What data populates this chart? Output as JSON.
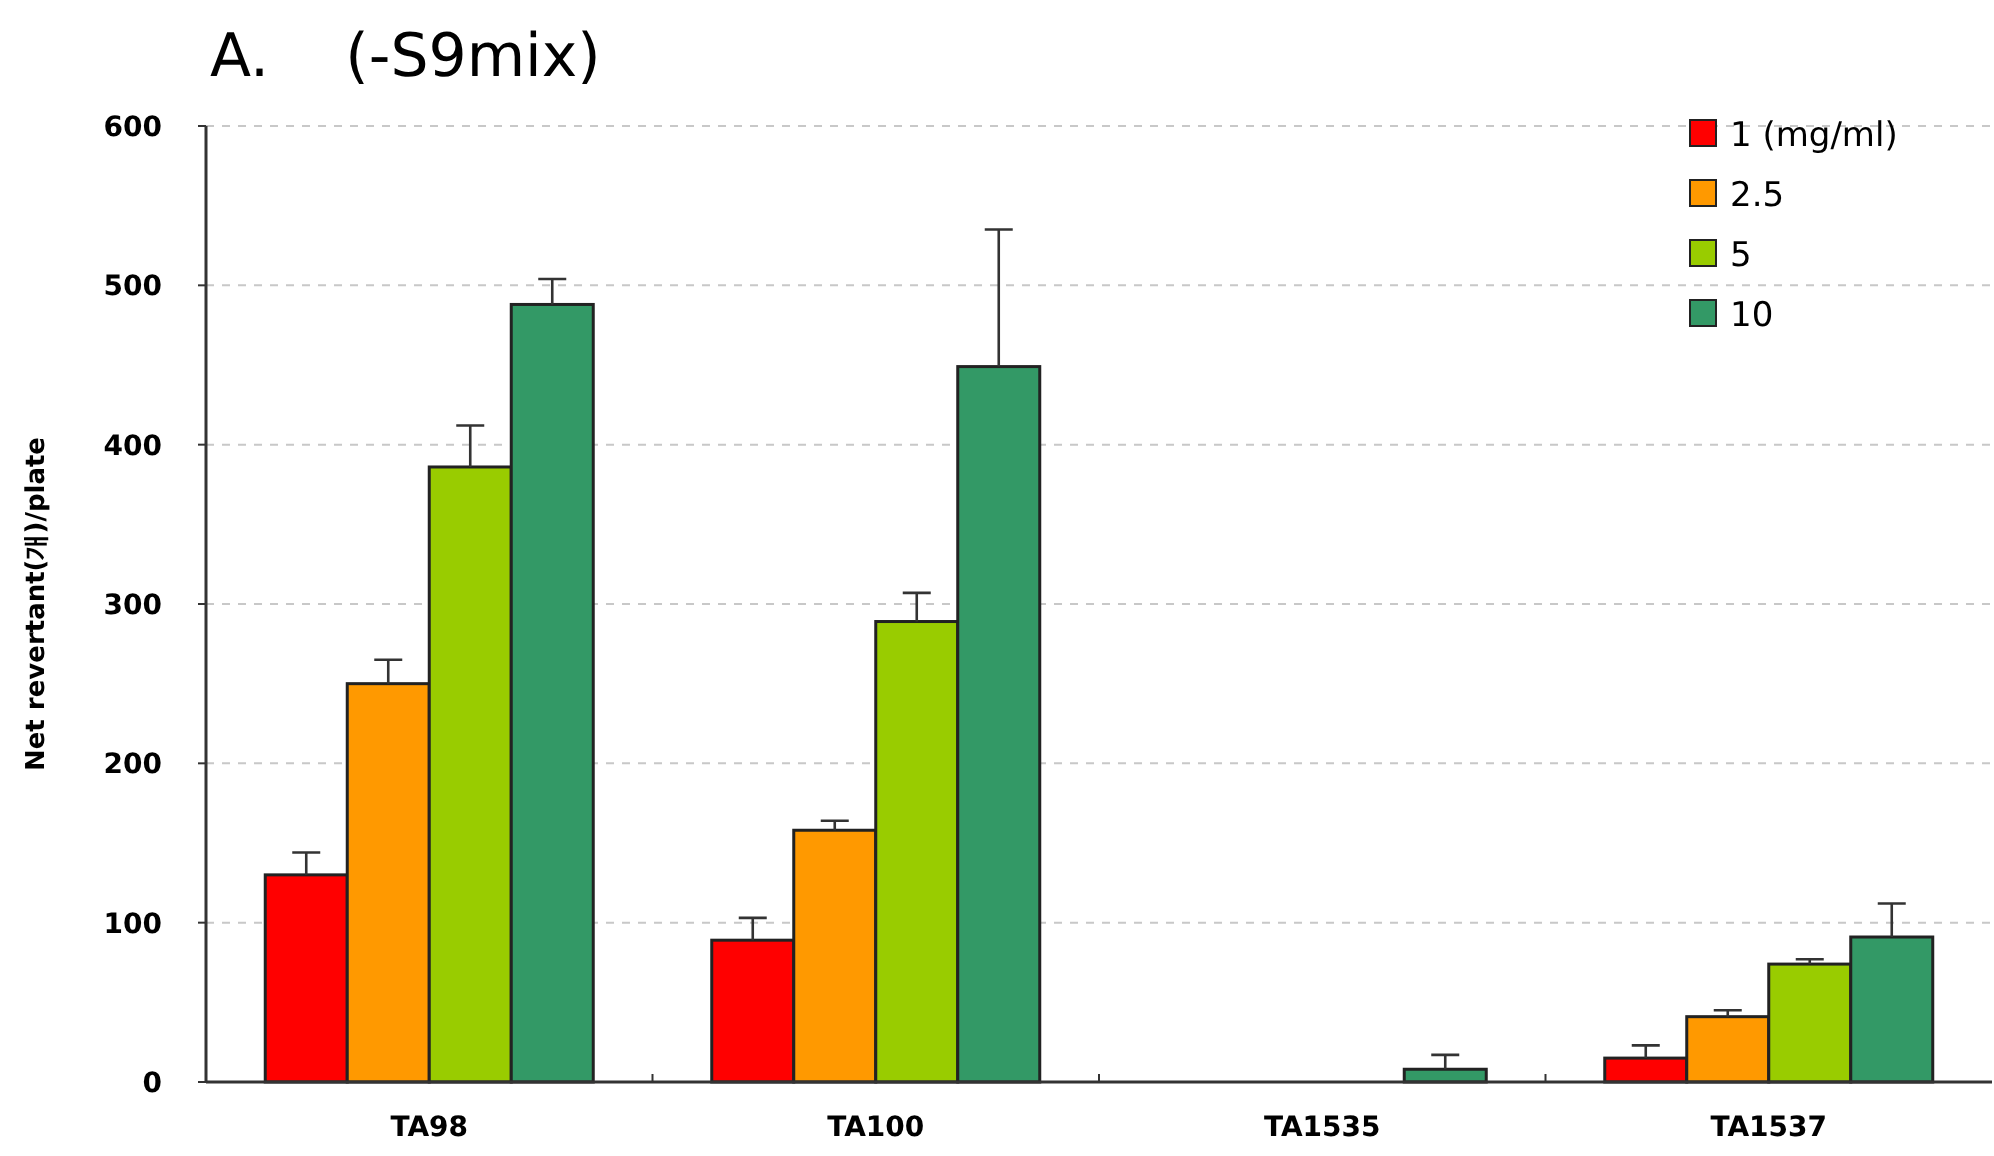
{
  "chart_data": {
    "type": "bar",
    "title": "A.    (-S9mix)",
    "ylabel": "Net revertant(개)/plate",
    "categories": [
      "TA98",
      "TA100",
      "TA1535",
      "TA1537"
    ],
    "series": [
      {
        "name": "1 (mg/ml)",
        "color": "#ff0000",
        "values": [
          130,
          89,
          0,
          15
        ],
        "errors": [
          14,
          14,
          null,
          8
        ]
      },
      {
        "name": "2.5",
        "color": "#ff9900",
        "values": [
          250,
          158,
          0,
          41
        ],
        "errors": [
          15,
          6,
          null,
          4
        ]
      },
      {
        "name": "5",
        "color": "#99cc00",
        "values": [
          386,
          289,
          0,
          74
        ],
        "errors": [
          26,
          18,
          null,
          3
        ]
      },
      {
        "name": "10",
        "color": "#339966",
        "values": [
          488,
          449,
          8,
          91
        ],
        "errors": [
          16,
          86,
          9,
          21
        ]
      }
    ],
    "ylim": [
      0,
      600
    ],
    "yticks": [
      0,
      100,
      200,
      300,
      400,
      500,
      600
    ],
    "grid": "y",
    "legend": "top right"
  }
}
